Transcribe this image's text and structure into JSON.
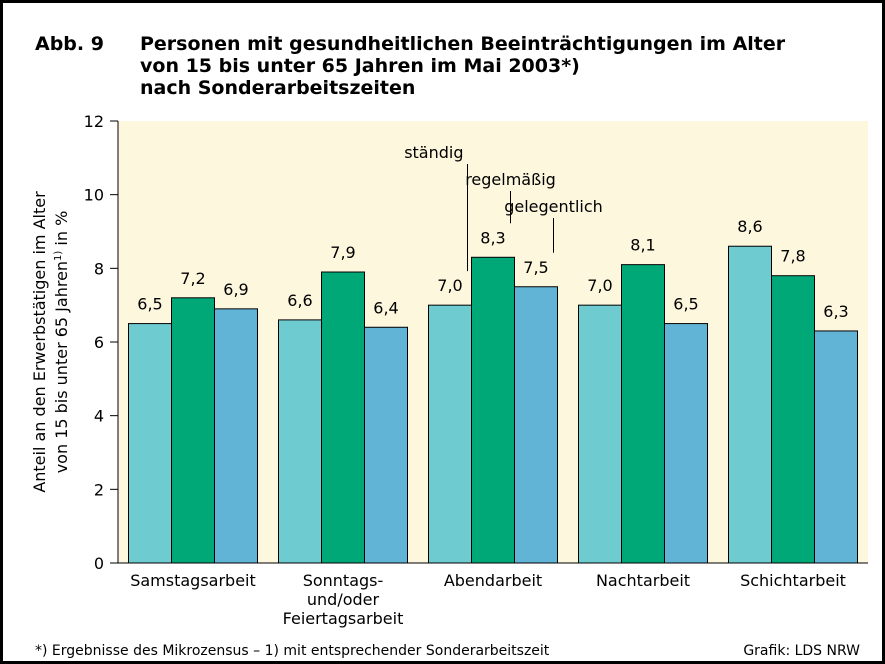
{
  "chart_data": {
    "type": "bar",
    "figure_label": "Abb. 9",
    "title_lines": [
      "Personen mit gesundheitlichen Beeinträchtigungen im Alter",
      "von 15 bis unter 65 Jahren im Mai 2003*)",
      "nach Sonderarbeitszeiten"
    ],
    "ylabel": {
      "line1": "Anteil an den Erwerbstätigen im Alter",
      "line2": "von 15 bis unter 65 Jahren",
      "sup": "1)",
      "line2_end": " in %"
    },
    "categories": [
      "Samstagsarbeit",
      "Sonntags-\nund/oder\nFeiertagsarbeit",
      "Abendarbeit",
      "Nachtarbeit",
      "Schichtarbeit"
    ],
    "series": [
      {
        "name": "ständig",
        "color": "#6ecbd0",
        "values": [
          6.5,
          6.6,
          7.0,
          7.0,
          8.6
        ],
        "value_labels": [
          "6,5",
          "6,6",
          "7,0",
          "7,0",
          "8,6"
        ]
      },
      {
        "name": "regelmäßig",
        "color": "#00a878",
        "values": [
          7.2,
          7.9,
          8.3,
          8.1,
          7.8
        ],
        "value_labels": [
          "7,2",
          "7,9",
          "8,3",
          "8,1",
          "7,8"
        ]
      },
      {
        "name": "gelegentlich",
        "color": "#62b4d6",
        "values": [
          6.9,
          6.4,
          7.5,
          6.5,
          6.3
        ],
        "value_labels": [
          "6,9",
          "6,4",
          "7,5",
          "6,5",
          "6,3"
        ]
      }
    ],
    "legend_group": 2,
    "ylim": [
      0,
      12
    ],
    "yticks": [
      0,
      2,
      4,
      6,
      8,
      10,
      12
    ],
    "footnote": "*) Ergebnisse des Mikrozensus – 1) mit entsprechender Sonderarbeitszeit",
    "source": "Grafik: LDS NRW"
  }
}
